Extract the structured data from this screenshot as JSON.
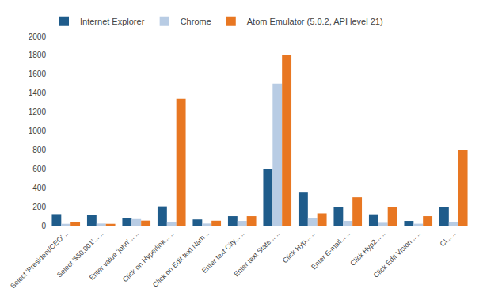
{
  "chart_data": {
    "type": "bar",
    "categories": [
      "Select 'President/CEO'...",
      "Select '$50,001'......",
      "Enter value 'john'......",
      "Click on Hyperlink......",
      "Click on Edit text Nam...",
      "Enter text City......",
      "Enter text State......",
      "Click Hyp......",
      "Enter E-mail......",
      "Click Hyp2......",
      "Click Edit Vision......",
      "Cl......"
    ],
    "series": [
      {
        "name": "Internet Explorer",
        "color": "#1f5c8b",
        "values": [
          122,
          110,
          77,
          204,
          65,
          100,
          600,
          350,
          200,
          120,
          50,
          200
        ]
      },
      {
        "name": "Chrome",
        "color": "#b8cce4",
        "values": [
          19,
          22,
          69,
          36,
          22,
          50,
          1500,
          80,
          50,
          30,
          20,
          40
        ]
      },
      {
        "name": "Atom Emulator (5.0.2, API level 21)",
        "color": "#e87722",
        "values": [
          42,
          19,
          53,
          1340,
          52,
          100,
          1800,
          130,
          300,
          200,
          100,
          800
        ]
      }
    ],
    "ylim": [
      0,
      2000
    ],
    "yticks": [
      0,
      200,
      400,
      600,
      800,
      1000,
      1200,
      1400,
      1600,
      1800,
      2000
    ],
    "grid": false,
    "legend": "top"
  }
}
